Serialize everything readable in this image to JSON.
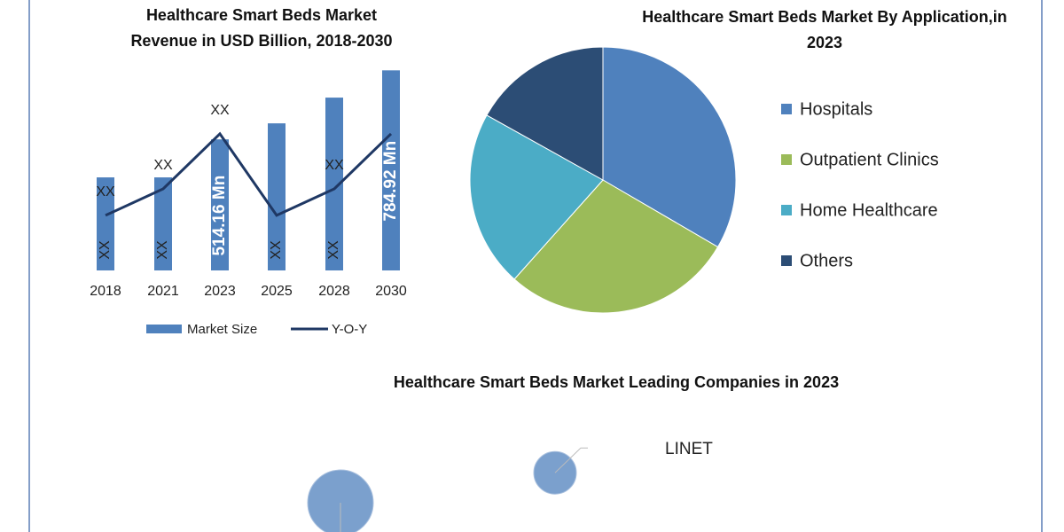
{
  "chart_data": [
    {
      "type": "bar",
      "title": "Healthcare Smart Beds Market Revenue in USD Billion, 2018-2030",
      "categories": [
        "2018",
        "2021",
        "2023",
        "2025",
        "2028",
        "2030"
      ],
      "ylim": [
        0,
        800
      ],
      "y2lim": [
        0,
        10
      ],
      "series": [
        {
          "name": "Market Size",
          "type": "bar",
          "color": "#4f81bd",
          "values": [
            365,
            365,
            514.16,
            577,
            678,
            784.92
          ],
          "value_labels": [
            "XX",
            "XX",
            "514.16 Mn",
            "XX",
            "XX",
            "784.92 Mn"
          ]
        },
        {
          "name": "Y-O-Y",
          "type": "line",
          "axis": "y2",
          "color": "#1f3864",
          "values": [
            2.7,
            4.0,
            6.7,
            2.7,
            4.0,
            6.7
          ],
          "value_labels": [
            "XX",
            "XX",
            "XX",
            null,
            "XX",
            null
          ]
        }
      ]
    },
    {
      "type": "pie",
      "title": "Healthcare Smart Beds Market By Application,in 2023",
      "categories": [
        "Hospitals",
        "Outpatient Clinics",
        "Home Healthcare",
        "Others"
      ],
      "values": [
        33.4,
        28.2,
        21.5,
        16.9
      ],
      "colors": [
        "#4f81bd",
        "#9bbb59",
        "#4bacc6",
        "#2c4d75"
      ]
    },
    {
      "type": "bubble",
      "title": "Healthcare Smart Beds Market Leading Companies in 2023",
      "categories": [
        null,
        "LINET"
      ],
      "x": [
        2.84,
        5.26
      ],
      "values": [
        0.72,
        2.6
      ],
      "sizes": [
        3.7,
        2.4
      ],
      "xlim": [
        0,
        10
      ],
      "ylim": [
        0,
        10
      ],
      "color": "#7ba0cd"
    }
  ]
}
